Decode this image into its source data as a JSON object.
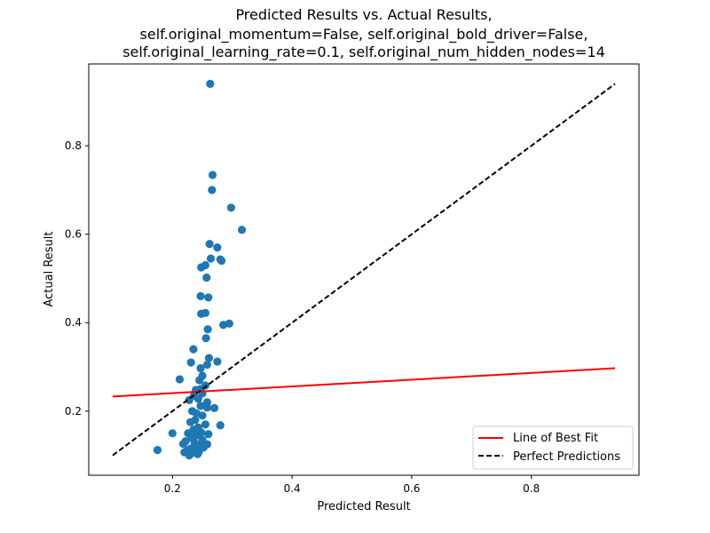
{
  "chart_data": {
    "type": "scatter",
    "title_lines": [
      "Predicted Results vs. Actual Results,",
      "self.original_momentum=False, self.original_bold_driver=False,",
      "self.original_learning_rate=0.1, self.original_num_hidden_nodes=14"
    ],
    "xlabel": "Predicted Result",
    "ylabel": "Actual Result",
    "xlim": [
      0.06,
      0.98
    ],
    "ylim": [
      0.055,
      0.985
    ],
    "xticks": [
      0.2,
      0.4,
      0.6,
      0.8
    ],
    "xtick_labels": [
      "0.2",
      "0.4",
      "0.6",
      "0.8"
    ],
    "yticks": [
      0.2,
      0.4,
      0.6,
      0.8
    ],
    "ytick_labels": [
      "0.2",
      "0.4",
      "0.6",
      "0.8"
    ],
    "grid": false,
    "legend_placement": "lower-right",
    "legend": [
      {
        "label": "Line of Best Fit",
        "color": "#ff0000",
        "style": "solid"
      },
      {
        "label": "Perfect Predictions",
        "color": "#000000",
        "style": "dashed"
      }
    ],
    "series": [
      {
        "kind": "scatter",
        "color": "#1f77b4",
        "points": [
          [
            0.263,
            0.94
          ],
          [
            0.267,
            0.734
          ],
          [
            0.266,
            0.7
          ],
          [
            0.298,
            0.66
          ],
          [
            0.316,
            0.61
          ],
          [
            0.275,
            0.57
          ],
          [
            0.262,
            0.578
          ],
          [
            0.28,
            0.543
          ],
          [
            0.282,
            0.54
          ],
          [
            0.264,
            0.545
          ],
          [
            0.255,
            0.53
          ],
          [
            0.248,
            0.525
          ],
          [
            0.257,
            0.502
          ],
          [
            0.247,
            0.46
          ],
          [
            0.26,
            0.457
          ],
          [
            0.248,
            0.42
          ],
          [
            0.255,
            0.422
          ],
          [
            0.295,
            0.398
          ],
          [
            0.285,
            0.395
          ],
          [
            0.259,
            0.385
          ],
          [
            0.256,
            0.365
          ],
          [
            0.235,
            0.34
          ],
          [
            0.261,
            0.32
          ],
          [
            0.275,
            0.312
          ],
          [
            0.231,
            0.31
          ],
          [
            0.258,
            0.305
          ],
          [
            0.247,
            0.297
          ],
          [
            0.25,
            0.28
          ],
          [
            0.245,
            0.27
          ],
          [
            0.212,
            0.272
          ],
          [
            0.255,
            0.258
          ],
          [
            0.247,
            0.25
          ],
          [
            0.239,
            0.248
          ],
          [
            0.25,
            0.24
          ],
          [
            0.236,
            0.235
          ],
          [
            0.228,
            0.225
          ],
          [
            0.243,
            0.228
          ],
          [
            0.258,
            0.22
          ],
          [
            0.247,
            0.212
          ],
          [
            0.258,
            0.208
          ],
          [
            0.27,
            0.207
          ],
          [
            0.233,
            0.2
          ],
          [
            0.24,
            0.195
          ],
          [
            0.25,
            0.19
          ],
          [
            0.238,
            0.18
          ],
          [
            0.23,
            0.175
          ],
          [
            0.255,
            0.17
          ],
          [
            0.28,
            0.168
          ],
          [
            0.243,
            0.163
          ],
          [
            0.235,
            0.158
          ],
          [
            0.248,
            0.152
          ],
          [
            0.226,
            0.15
          ],
          [
            0.2,
            0.15
          ],
          [
            0.26,
            0.148
          ],
          [
            0.24,
            0.145
          ],
          [
            0.232,
            0.14
          ],
          [
            0.25,
            0.135
          ],
          [
            0.222,
            0.132
          ],
          [
            0.237,
            0.128
          ],
          [
            0.248,
            0.125
          ],
          [
            0.258,
            0.125
          ],
          [
            0.218,
            0.126
          ],
          [
            0.24,
            0.12
          ],
          [
            0.23,
            0.115
          ],
          [
            0.252,
            0.118
          ],
          [
            0.226,
            0.112
          ],
          [
            0.236,
            0.11
          ],
          [
            0.244,
            0.108
          ],
          [
            0.22,
            0.107
          ],
          [
            0.232,
            0.105
          ],
          [
            0.242,
            0.103
          ],
          [
            0.228,
            0.1
          ],
          [
            0.175,
            0.112
          ]
        ]
      },
      {
        "kind": "line",
        "name": "Line of Best Fit",
        "color": "#ff0000",
        "style": "solid",
        "x": [
          0.1,
          0.94
        ],
        "y": [
          0.233,
          0.297
        ]
      },
      {
        "kind": "line",
        "name": "Perfect Predictions",
        "color": "#000000",
        "style": "dashed",
        "x": [
          0.1,
          0.94
        ],
        "y": [
          0.1,
          0.94
        ]
      }
    ]
  }
}
